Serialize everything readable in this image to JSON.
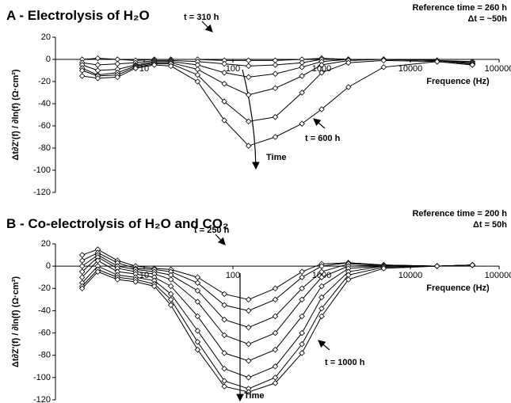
{
  "chart_data": [
    {
      "type": "line",
      "title": "A - Electrolysis of H₂O",
      "subtitle": [
        "Reference time = 260 h",
        "Δt = ~50h"
      ],
      "x_label": "Frequence (Hz)",
      "y_label": "Δt∂Z'(f) / ∂ln(f) (Ω·cm²)",
      "annotations": [
        "t = 310 h",
        "t = 600 h",
        "Time"
      ],
      "x": [
        2,
        3,
        5,
        8,
        13,
        20,
        40,
        80,
        150,
        300,
        600,
        1000,
        2000,
        5000,
        20000,
        50000
      ],
      "log_x": true,
      "xlim": [
        1,
        100000
      ],
      "xticks": [
        10,
        100,
        1000,
        10000,
        100000
      ],
      "ylim": [
        -120,
        20
      ],
      "yticks": [
        -120,
        -100,
        -80,
        -60,
        -40,
        -20,
        0,
        20
      ],
      "series": [
        {
          "color": "#000000",
          "values": [
            0,
            1,
            0,
            -1,
            0,
            0,
            0,
            -1,
            -1,
            -1,
            0,
            1,
            0,
            0,
            -1,
            -2
          ]
        },
        {
          "color": "#000000",
          "values": [
            -3,
            -5,
            -4,
            -3,
            -1,
            -1,
            -2,
            -4,
            -6,
            -5,
            -3,
            0,
            0,
            0,
            -1,
            -3
          ]
        },
        {
          "color": "#000000",
          "values": [
            -5,
            -10,
            -9,
            -5,
            -2,
            -2,
            -5,
            -12,
            -16,
            -13,
            -7,
            -2,
            0,
            0,
            -1,
            -4
          ]
        },
        {
          "color": "#000000",
          "values": [
            -8,
            -14,
            -12,
            -6,
            -3,
            -3,
            -9,
            -22,
            -32,
            -26,
            -15,
            -5,
            -1,
            0,
            -1,
            -4
          ]
        },
        {
          "color": "#000000",
          "values": [
            -10,
            -15,
            -14,
            -7,
            -4,
            -4,
            -14,
            -38,
            -56,
            -52,
            -30,
            -12,
            -3,
            -1,
            -2,
            -5
          ]
        },
        {
          "color": "#000000",
          "values": [
            -15,
            -17,
            -16,
            -8,
            -5,
            -6,
            -20,
            -55,
            -78,
            -70,
            -58,
            -45,
            -25,
            -7,
            -2,
            -5
          ]
        }
      ]
    },
    {
      "type": "line",
      "title": "B - Co-electrolysis of H₂O and CO₂",
      "subtitle": [
        "Reference time = 200 h",
        "Δt = 50h"
      ],
      "x_label": "Frequence (Hz)",
      "y_label": "Δt∂Z'(f) / ∂ln(f) (Ω·cm²)",
      "annotations": [
        "t = 250 h",
        "t = 1000 h",
        "Time"
      ],
      "x": [
        2,
        3,
        5,
        8,
        13,
        20,
        40,
        80,
        150,
        300,
        600,
        1000,
        2000,
        5000,
        20000,
        50000
      ],
      "log_x": true,
      "xlim": [
        1,
        100000
      ],
      "xticks": [
        10,
        100,
        1000,
        10000,
        100000
      ],
      "ylim": [
        -120,
        20
      ],
      "yticks": [
        -120,
        -100,
        -80,
        -60,
        -40,
        -20,
        0,
        20
      ],
      "series": [
        {
          "color": "#000000",
          "values": [
            10,
            15,
            5,
            0,
            -2,
            -3,
            -10,
            -25,
            -30,
            -20,
            -5,
            2,
            3,
            1,
            0,
            1
          ]
        },
        {
          "color": "#000000",
          "values": [
            5,
            12,
            3,
            -2,
            -3,
            -5,
            -15,
            -35,
            -40,
            -30,
            -10,
            0,
            3,
            1,
            0,
            1
          ]
        },
        {
          "color": "#000000",
          "values": [
            0,
            10,
            0,
            -3,
            -5,
            -8,
            -22,
            -48,
            -55,
            -45,
            -20,
            -5,
            2,
            1,
            0,
            1
          ]
        },
        {
          "color": "#000000",
          "values": [
            -5,
            8,
            -2,
            -5,
            -7,
            -12,
            -32,
            -62,
            -70,
            -60,
            -30,
            -10,
            0,
            1,
            0,
            1
          ]
        },
        {
          "color": "#000000",
          "values": [
            -10,
            5,
            -5,
            -7,
            -10,
            -18,
            -45,
            -78,
            -85,
            -75,
            -45,
            -18,
            -2,
            0,
            0,
            1
          ]
        },
        {
          "color": "#000000",
          "values": [
            -15,
            0,
            -8,
            -10,
            -13,
            -25,
            -58,
            -92,
            -100,
            -90,
            -60,
            -28,
            -5,
            0,
            0,
            1
          ]
        },
        {
          "color": "#000000",
          "values": [
            -18,
            -3,
            -10,
            -12,
            -16,
            -30,
            -68,
            -103,
            -110,
            -100,
            -70,
            -38,
            -8,
            -1,
            0,
            1
          ]
        },
        {
          "color": "#000000",
          "values": [
            -20,
            -5,
            -12,
            -14,
            -18,
            -35,
            -75,
            -108,
            -113,
            -105,
            -78,
            -45,
            -12,
            -2,
            0,
            1
          ]
        }
      ]
    }
  ]
}
